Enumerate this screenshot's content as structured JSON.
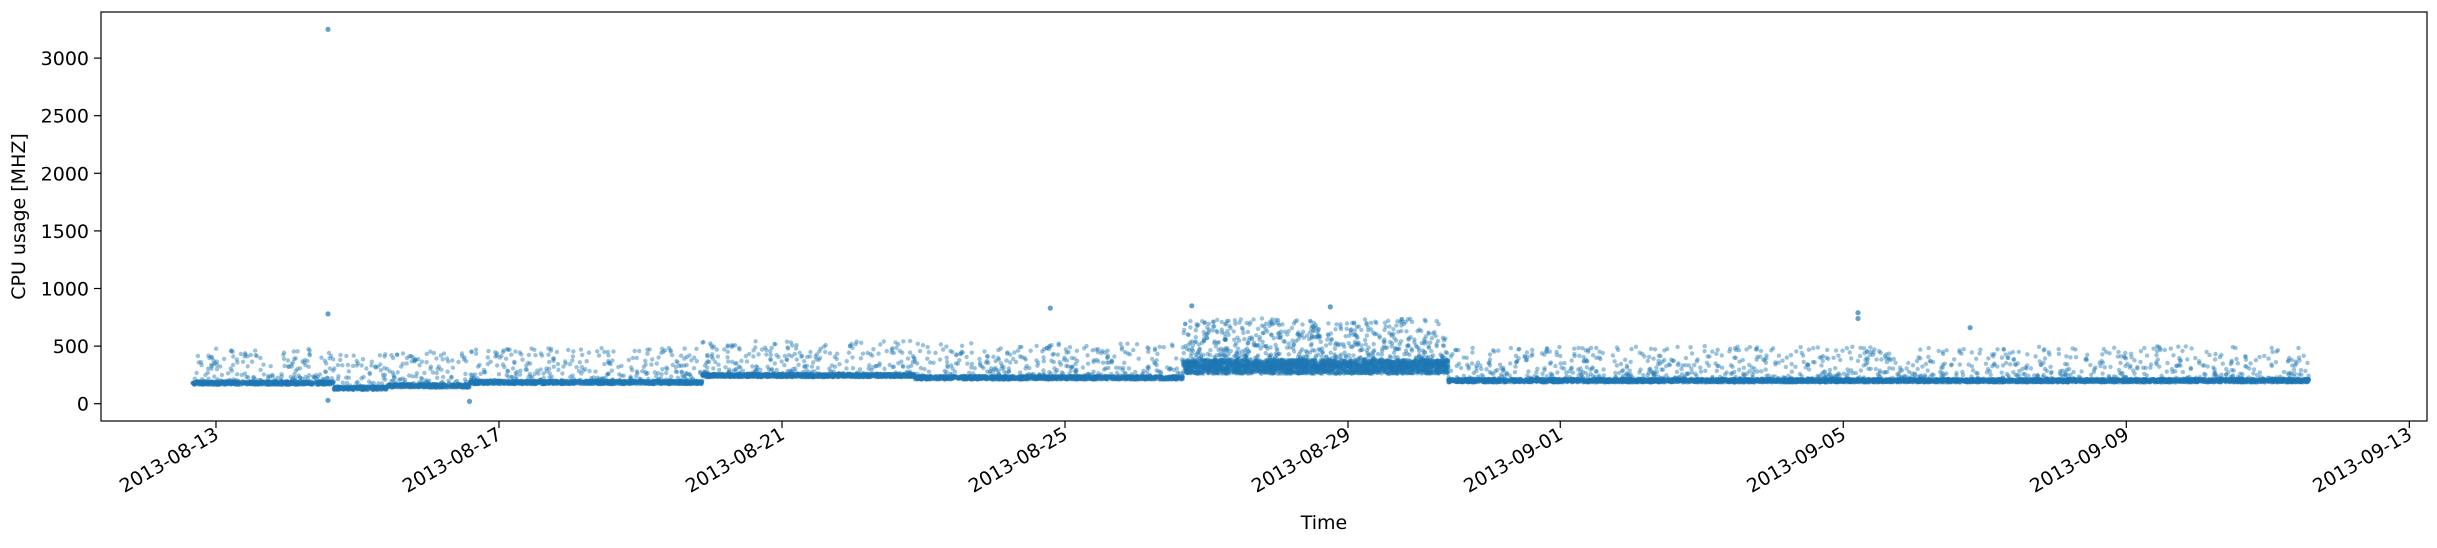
{
  "chart_data": {
    "type": "scatter",
    "xlabel": "Time",
    "ylabel": "CPU usage [MHZ]",
    "x_axis_type": "date",
    "xlim": [
      "2013-08-11T09:00",
      "2013-09-13T06:00"
    ],
    "ylim": [
      -150,
      3400
    ],
    "x_ticks": [
      "2013-08-13",
      "2013-08-17",
      "2013-08-21",
      "2013-08-25",
      "2013-08-29",
      "2013-09-01",
      "2013-09-05",
      "2013-09-09",
      "2013-09-13"
    ],
    "y_ticks": [
      0,
      500,
      1000,
      1500,
      2000,
      2500,
      3000
    ],
    "grid": false,
    "marker_color": "#1f77b4",
    "marker_alpha": 0.45,
    "series": [
      {
        "baseline_segments": [
          {
            "start": "2013-08-12T16:00",
            "end": "2013-08-14T16:00",
            "level": 180
          },
          {
            "start": "2013-08-14T16:00",
            "end": "2013-08-15T10:00",
            "level": 135
          },
          {
            "start": "2013-08-15T10:00",
            "end": "2013-08-16T14:00",
            "level": 155
          },
          {
            "start": "2013-08-16T14:00",
            "end": "2013-08-19T21:00",
            "level": 185
          },
          {
            "start": "2013-08-19T21:00",
            "end": "2013-08-22T21:00",
            "level": 245
          },
          {
            "start": "2013-08-22T21:00",
            "end": "2013-08-26T16:00",
            "level": 225
          },
          {
            "start": "2013-08-26T16:00",
            "end": "2013-08-30T10:00",
            "level": 320
          },
          {
            "start": "2013-08-30T10:00",
            "end": "2013-09-11T14:00",
            "level": 200
          }
        ],
        "notable_points": [
          {
            "x": "2013-08-14T14:00",
            "y": 3250
          },
          {
            "x": "2013-08-14T14:00",
            "y": 780
          },
          {
            "x": "2013-08-14T14:00",
            "y": 30
          },
          {
            "x": "2013-08-16T14:00",
            "y": 20
          },
          {
            "x": "2013-08-24T19:00",
            "y": 830
          },
          {
            "x": "2013-08-26T19:00",
            "y": 850
          },
          {
            "x": "2013-08-28T18:00",
            "y": 840
          },
          {
            "x": "2013-09-05T05:00",
            "y": 790
          },
          {
            "x": "2013-09-05T05:00",
            "y": 740
          },
          {
            "x": "2013-09-06T19:00",
            "y": 660
          }
        ]
      }
    ]
  }
}
